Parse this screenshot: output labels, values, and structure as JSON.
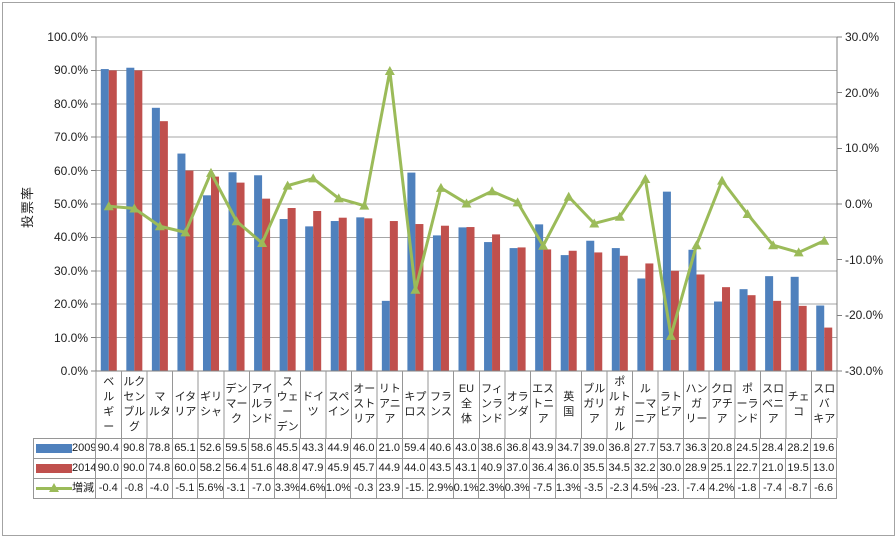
{
  "chart_data": {
    "type": "bar",
    "combo": "clustered bars + line on secondary axis",
    "title": "",
    "ylabel_left": "投票率",
    "ylabel_right": "",
    "grid": true,
    "legend_position": "data-table-left",
    "categories": [
      "ベルギー",
      "ルクセンブルグ",
      "マルタ",
      "イタリア",
      "ギリシャ",
      "デンマーク",
      "アイルランド",
      "スウェーデン",
      "ドイツ",
      "スペイン",
      "オーストリア",
      "リトアニア",
      "キプロス",
      "フランス",
      "EU全体",
      "フィンランド",
      "オランダ",
      "エストニア",
      "英国",
      "ブルガリア",
      "ポルトガル",
      "ルーマニア",
      "ラトビア",
      "ハンガリー",
      "クロアチア",
      "ポーランド",
      "スロベニア",
      "チェコ",
      "スロバキア"
    ],
    "category_label_lines": [
      [
        "ベ",
        "ル",
        "ギ",
        "ー"
      ],
      [
        "ルク",
        "セン",
        "ブル",
        "グ"
      ],
      [
        "マ",
        "ルタ"
      ],
      [
        "イタ",
        "リア"
      ],
      [
        "ギリ",
        "シャ"
      ],
      [
        "デン",
        "マー",
        "ク"
      ],
      [
        "アイ",
        "ルラ",
        "ンド"
      ],
      [
        "ス",
        "ウェ",
        "ー",
        "デン"
      ],
      [
        "ドイ",
        "ツ"
      ],
      [
        "スペ",
        "イン"
      ],
      [
        "オー",
        "スト",
        "リア"
      ],
      [
        "リト",
        "アニ",
        "ア"
      ],
      [
        "キプ",
        "ロス"
      ],
      [
        "フラ",
        "ンス"
      ],
      [
        "EU",
        "全",
        "体"
      ],
      [
        "フィ",
        "ンラ",
        "ンド"
      ],
      [
        "オラ",
        "ンダ"
      ],
      [
        "エス",
        "トニ",
        "ア"
      ],
      [
        "英",
        "国"
      ],
      [
        "ブル",
        "ガリ",
        "ア"
      ],
      [
        "ポ",
        "ルト",
        "ガ",
        "ル"
      ],
      [
        "ル",
        "ーマ",
        "ニア"
      ],
      [
        "ラト",
        "ビア"
      ],
      [
        "ハン",
        "ガ",
        "リー"
      ],
      [
        "クロ",
        "アチ",
        "ア"
      ],
      [
        "ポ",
        "ーラ",
        "ンド"
      ],
      [
        "スロ",
        "ベニ",
        "ア"
      ],
      [
        "チェ",
        "コ"
      ],
      [
        "スロ",
        "バ",
        "キア"
      ]
    ],
    "left_axis": {
      "min": 0,
      "max": 100,
      "step": 10,
      "tick_labels": [
        "100.0%",
        "90.0%",
        "80.0%",
        "70.0%",
        "60.0%",
        "50.0%",
        "40.0%",
        "30.0%",
        "20.0%",
        "10.0%",
        "0.0%"
      ]
    },
    "right_axis": {
      "min": -30,
      "max": 30,
      "step": 10,
      "tick_labels": [
        "30.0%",
        "20.0%",
        "10.0%",
        "0.0%",
        "-10.0%",
        "-20.0%",
        "-30.0%"
      ]
    },
    "series": [
      {
        "name": "2009",
        "type": "bar",
        "axis": "left",
        "color": "#4f81bd",
        "values": [
          90.4,
          90.8,
          78.8,
          65.1,
          52.6,
          59.5,
          58.6,
          45.5,
          43.3,
          44.9,
          46.0,
          21.0,
          59.4,
          40.6,
          43.0,
          38.6,
          36.8,
          43.9,
          34.7,
          39.0,
          36.8,
          27.7,
          53.7,
          36.3,
          20.8,
          24.5,
          28.4,
          28.2,
          19.6
        ]
      },
      {
        "name": "2014",
        "type": "bar",
        "axis": "left",
        "color": "#c0504d",
        "values": [
          90.0,
          90.0,
          74.8,
          60.0,
          58.2,
          56.4,
          51.6,
          48.8,
          47.9,
          45.9,
          45.7,
          44.9,
          44.0,
          43.5,
          43.1,
          40.9,
          37.0,
          36.4,
          36.0,
          35.5,
          34.5,
          32.2,
          30.0,
          28.9,
          25.1,
          22.7,
          21.0,
          19.5,
          13.0
        ]
      },
      {
        "name": "増減",
        "type": "line",
        "axis": "right",
        "color": "#9bbb59",
        "values": [
          -0.4,
          -0.8,
          -4.0,
          -5.1,
          5.6,
          -3.1,
          -7.0,
          3.3,
          4.6,
          1.0,
          -0.3,
          23.9,
          -15.4,
          2.9,
          0.1,
          2.3,
          0.3,
          -7.5,
          1.3,
          -3.5,
          -2.3,
          4.5,
          -23.7,
          -7.4,
          4.2,
          -1.8,
          -7.4,
          -8.7,
          -6.6
        ]
      }
    ],
    "data_table_rows": [
      {
        "name": "2009",
        "marker": "bar",
        "color": "#4f81bd",
        "cells": [
          "90.4",
          "90.8",
          "78.8",
          "65.1",
          "52.6",
          "59.5",
          "58.6",
          "45.5",
          "43.3",
          "44.9",
          "46.0",
          "21.0",
          "59.4",
          "40.6",
          "43.0",
          "38.6",
          "36.8",
          "43.9",
          "34.7",
          "39.0",
          "36.8",
          "27.7",
          "53.7",
          "36.3",
          "20.8",
          "24.5",
          "28.4",
          "28.2",
          "19.6"
        ]
      },
      {
        "name": "2014",
        "marker": "bar",
        "color": "#c0504d",
        "cells": [
          "90.0",
          "90.0",
          "74.8",
          "60.0",
          "58.2",
          "56.4",
          "51.6",
          "48.8",
          "47.9",
          "45.9",
          "45.7",
          "44.9",
          "44.0",
          "43.5",
          "43.1",
          "40.9",
          "37.0",
          "36.4",
          "36.0",
          "35.5",
          "34.5",
          "32.2",
          "30.0",
          "28.9",
          "25.1",
          "22.7",
          "21.0",
          "19.5",
          "13.0"
        ]
      },
      {
        "name": "増減",
        "marker": "line",
        "color": "#9bbb59",
        "cells": [
          "-0.4",
          "-0.8",
          "-4.0",
          "-5.1",
          "5.6%",
          "-3.1",
          "-7.0",
          "3.3%",
          "4.6%",
          "1.0%",
          "-0.3",
          "23.9",
          "-15.",
          "2.9%",
          "0.1%",
          "2.3%",
          "0.3%",
          "-7.5",
          "1.3%",
          "-3.5",
          "-2.3",
          "4.5%",
          "-23.",
          "-7.4",
          "4.2%",
          "-1.8",
          "-7.4",
          "-8.7",
          "-6.6"
        ]
      }
    ],
    "colors": {
      "bar_2009": "#4f81bd",
      "bar_2014": "#c0504d",
      "line_change": "#9bbb59",
      "gridline": "#a6a6a6",
      "axis": "#808080",
      "table_border": "#969696",
      "text": "#202020",
      "frame": "#a3a3a3"
    }
  }
}
